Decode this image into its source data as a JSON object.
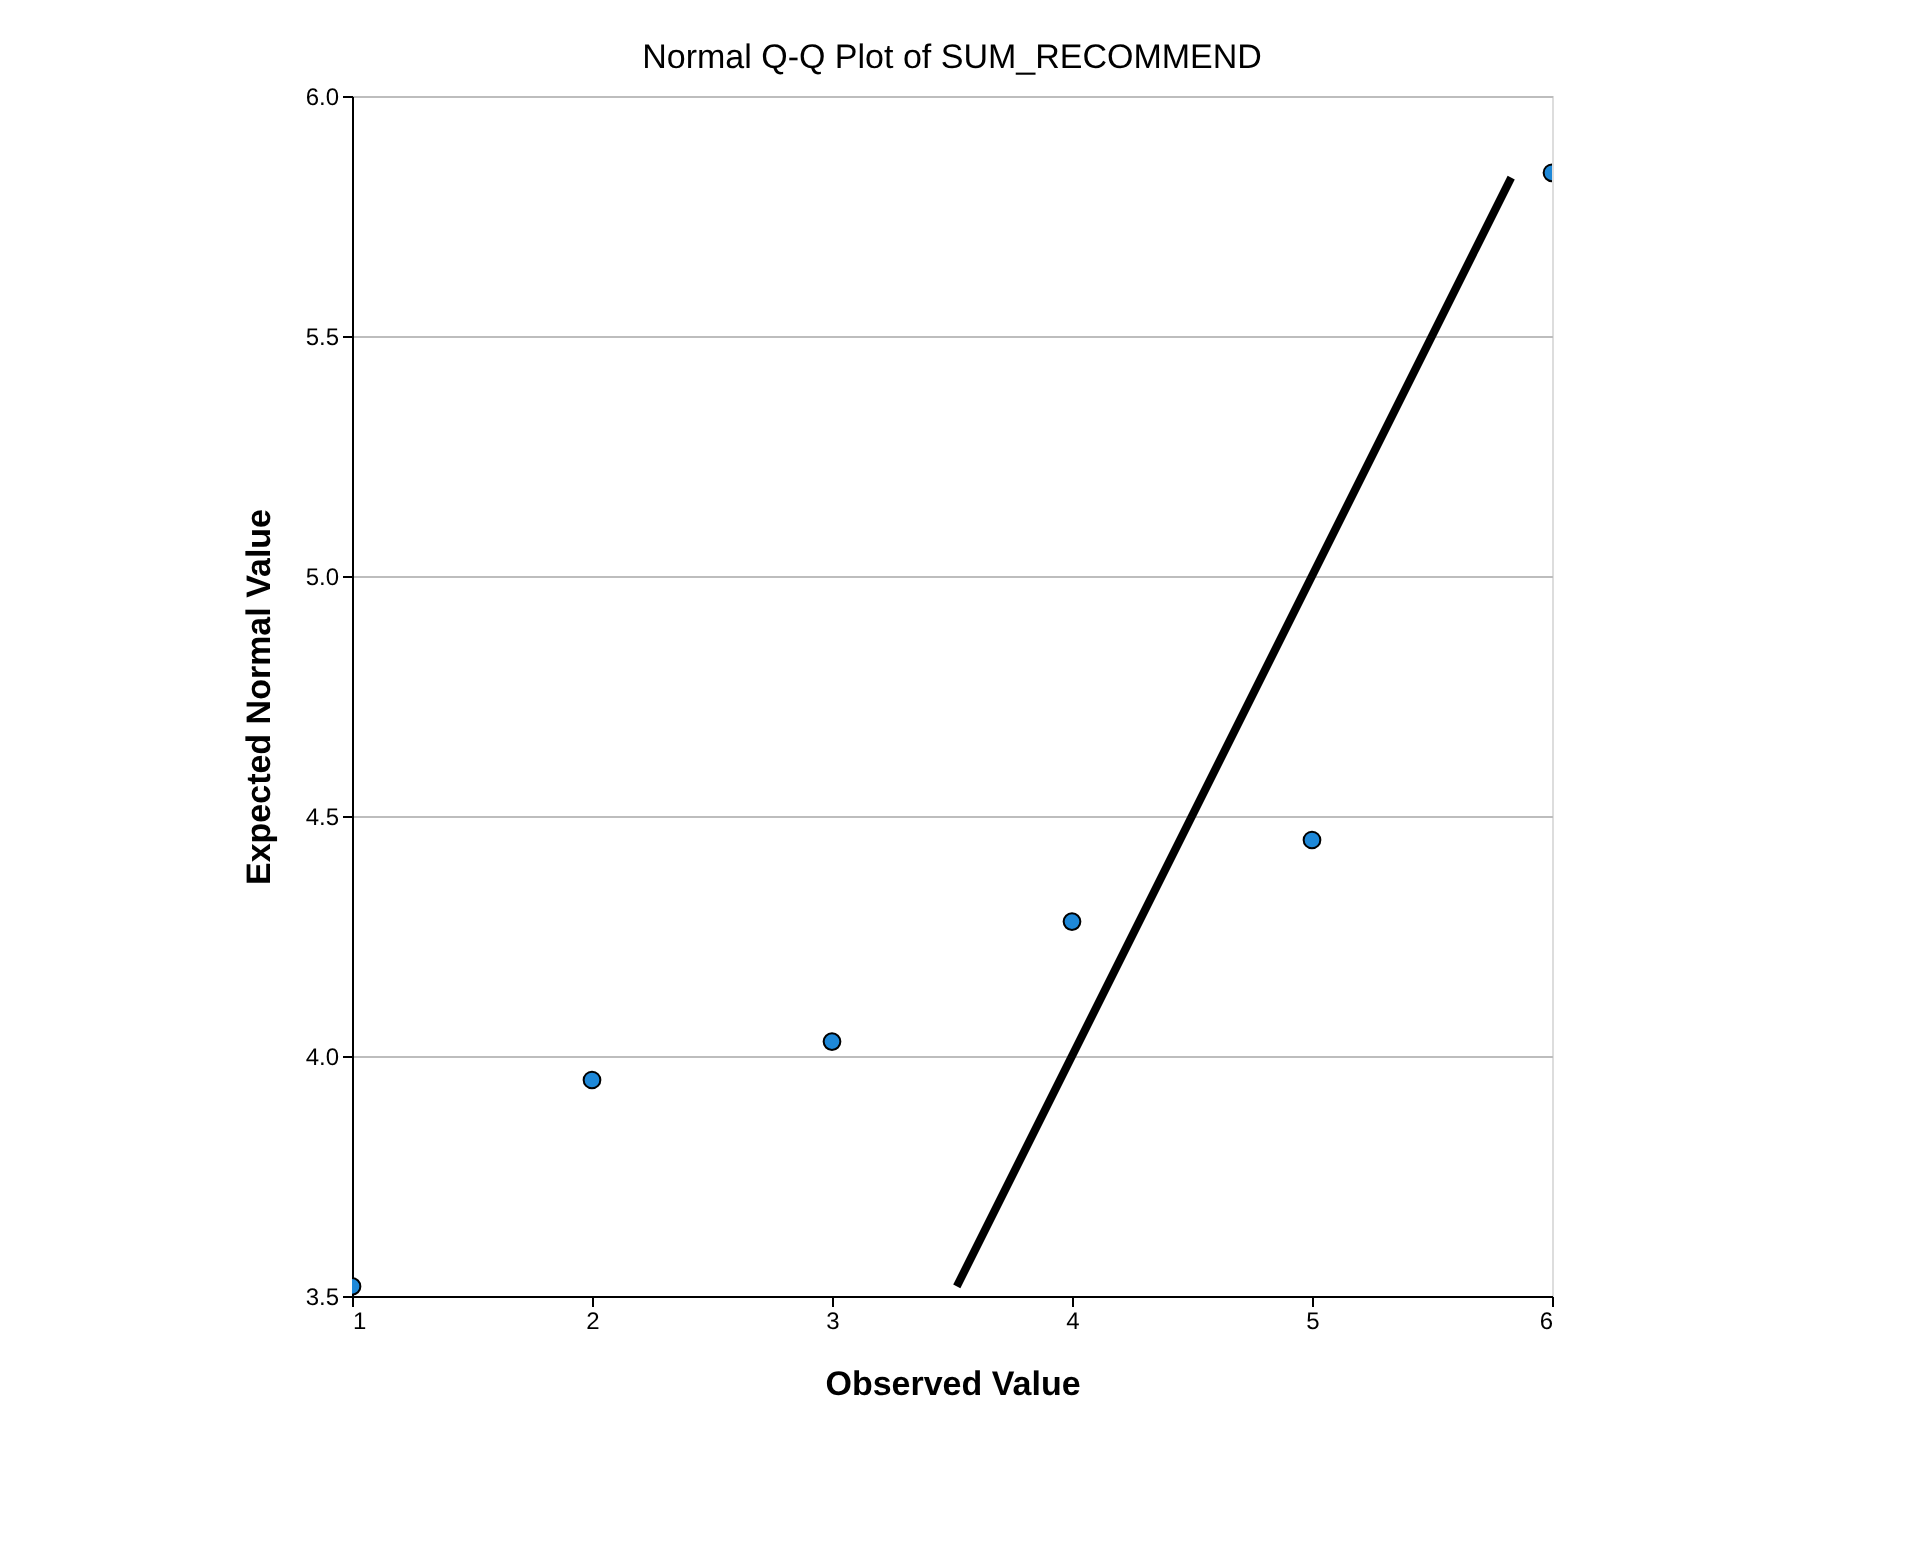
{
  "chart_data": {
    "type": "scatter",
    "title": "Normal Q-Q Plot of SUM_RECOMMEND",
    "xlabel": "Observed Value",
    "ylabel": "Expected Normal Value",
    "xlim": [
      1,
      6
    ],
    "xticks": [
      1,
      2,
      3,
      4,
      5,
      6
    ],
    "ylim": [
      3.5,
      6.0
    ],
    "yticks": [
      3.5,
      {
        "value": 4,
        "label": "4.0"
      },
      4.5,
      {
        "value": 5,
        "label": "5.0"
      },
      5.5,
      {
        "value": 6,
        "label": "6.0"
      }
    ],
    "grid": "y",
    "series": [
      {
        "marker": "circle",
        "color": "#1e88d8",
        "x": [
          1,
          2,
          3,
          4,
          5,
          6
        ],
        "values": [
          3.52,
          3.95,
          4.03,
          4.28,
          4.45,
          5.84
        ]
      },
      {
        "type": "line",
        "color": "#000000",
        "line_style": "solid",
        "x": [
          3.52,
          5.83
        ],
        "values": [
          3.52,
          5.83
        ]
      }
    ]
  }
}
